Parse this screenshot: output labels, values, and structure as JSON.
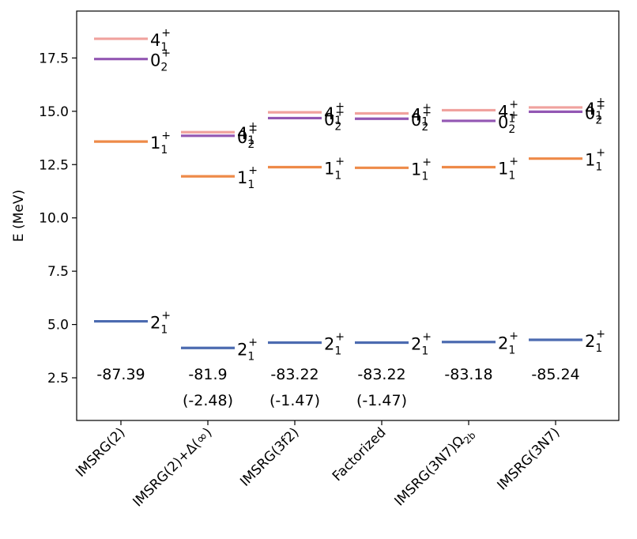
{
  "chart_data": {
    "type": "level-scheme",
    "ylabel": "E (MeV)",
    "ylim": [
      0.5,
      19.7
    ],
    "yticks": [
      2.5,
      5.0,
      7.5,
      10.0,
      12.5,
      15.0,
      17.5
    ],
    "ytick_labels": [
      "2.5",
      "5.0",
      "7.5",
      "10.0",
      "12.5",
      "15.0",
      "17.5"
    ],
    "categories": [
      {
        "name": "IMSRG(2)",
        "label_main": "IMSRG(2)",
        "label_sub": "",
        "label_tail": ""
      },
      {
        "name": "IMSRG(2)+Δ(∞)",
        "label_main": "IMSRG(2)+Δ(",
        "label_sub": "",
        "label_tail": "∞)",
        "italic_tail": true
      },
      {
        "name": "IMSRG(3f2)",
        "label_main": "IMSRG(3f2)",
        "label_sub": "",
        "label_tail": ""
      },
      {
        "name": "Factorized",
        "label_main": "Factorized",
        "label_sub": "",
        "label_tail": ""
      },
      {
        "name": "IMSRG(3N7)Ω2b",
        "label_main": "IMSRG(3N7)Ω",
        "label_sub": "2b",
        "label_tail": ""
      },
      {
        "name": "IMSRG(3N7)",
        "label_main": "IMSRG(3N7)",
        "label_sub": "",
        "label_tail": ""
      }
    ],
    "series": [
      {
        "name": "2_1^+",
        "state": "2",
        "sub": "1",
        "sup": "+",
        "color": "#4c6bb0",
        "values": [
          5.15,
          3.9,
          4.15,
          4.15,
          4.18,
          4.28
        ]
      },
      {
        "name": "1_1^+",
        "state": "1",
        "sub": "1",
        "sup": "+",
        "color": "#ee8a48",
        "values": [
          13.58,
          11.95,
          12.38,
          12.35,
          12.38,
          12.78
        ]
      },
      {
        "name": "0_2^+",
        "state": "0",
        "sub": "2",
        "sup": "+",
        "color": "#9357b3",
        "values": [
          17.45,
          13.85,
          14.68,
          14.65,
          14.55,
          14.98
        ]
      },
      {
        "name": "4_1^+",
        "state": "4",
        "sub": "1",
        "sup": "+",
        "color": "#f0a29e",
        "values": [
          18.4,
          14.02,
          14.95,
          14.9,
          15.05,
          15.18
        ]
      }
    ],
    "annotations": {
      "energies": [
        "-87.39",
        "-81.9",
        "-83.22",
        "-83.22",
        "-83.18",
        "-85.24"
      ],
      "corrections": [
        "",
        "(-2.48)",
        "(-1.47)",
        "(-1.47)",
        "",
        ""
      ]
    }
  }
}
